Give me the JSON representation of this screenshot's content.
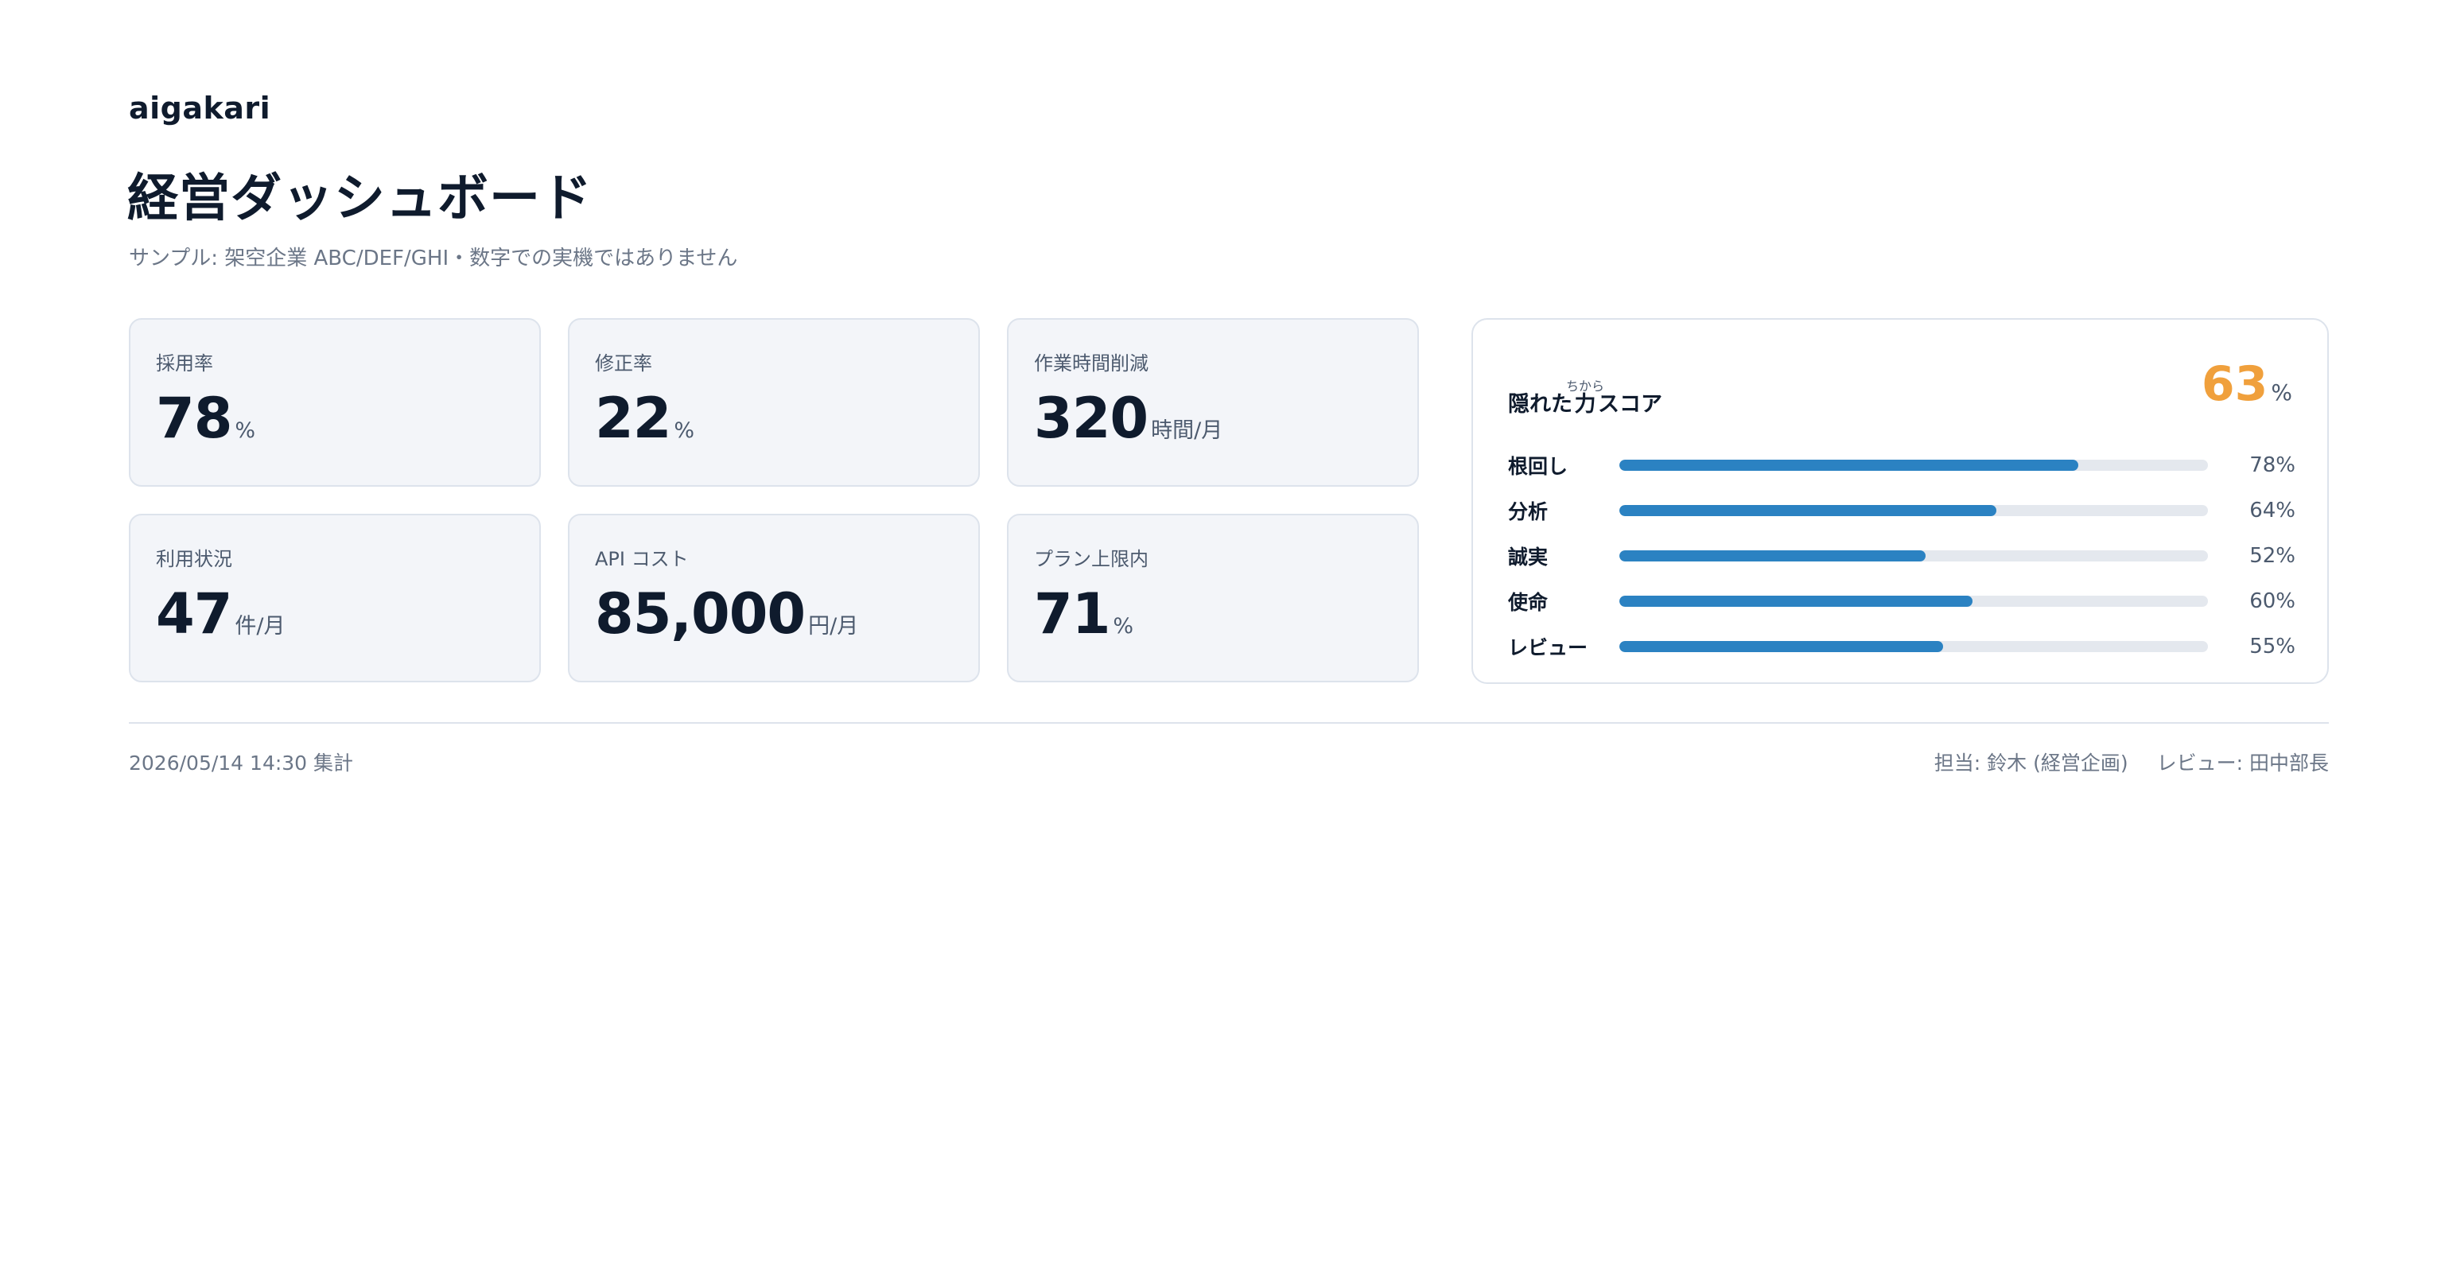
{
  "header": {
    "brand": "aigakari",
    "title": "経営ダッシュボード",
    "subtitle": "サンプル: 架空企業 ABC/DEF/GHI・数字での実機ではありません"
  },
  "kpis": [
    {
      "label": "採用率",
      "value": "78",
      "unit": "%"
    },
    {
      "label": "修正率",
      "value": "22",
      "unit": "%"
    },
    {
      "label": "作業時間削減",
      "value": "320",
      "unit": "時間/月"
    },
    {
      "label": "利用状況",
      "value": "47",
      "unit": "件/月"
    },
    {
      "label": "API コスト",
      "value": "85,000",
      "unit": "円/月"
    },
    {
      "label": "プラン上限内",
      "value": "71",
      "unit": "%"
    }
  ],
  "score_card": {
    "title_prefix": "隠れた",
    "title_ruby_base": "力",
    "title_ruby_text": "ちから",
    "title_suffix": "スコア",
    "total_value": "63",
    "total_unit": "%",
    "accent_color": "#f0a03c",
    "bar_color": "#2b82c2",
    "items": [
      {
        "label": "根回し",
        "value": 78,
        "display": "78%"
      },
      {
        "label": "分析",
        "value": 64,
        "display": "64%"
      },
      {
        "label": "誠実",
        "value": 52,
        "display": "52%"
      },
      {
        "label": "使命",
        "value": 60,
        "display": "60%"
      },
      {
        "label": "レビュー",
        "value": 55,
        "display": "55%"
      }
    ]
  },
  "footer": {
    "timestamp": "2026/05/14 14:30 集計",
    "owner": "担当: 鈴木 (経営企画)",
    "reviewer": "レビュー: 田中部長"
  }
}
